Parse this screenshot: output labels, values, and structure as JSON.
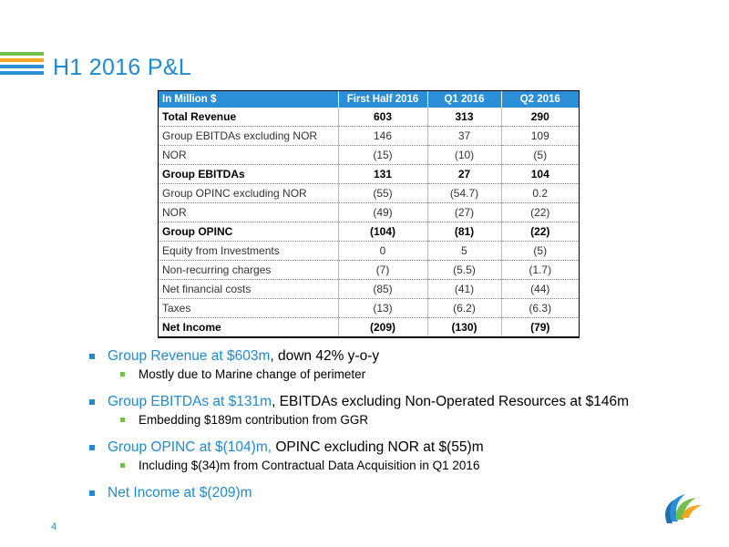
{
  "slide": {
    "title": "H1 2016 P&L",
    "page_number": "4"
  },
  "table": {
    "headers": [
      "In Million  $",
      "First Half 2016",
      "Q1 2016",
      "Q2 2016"
    ],
    "rows": [
      {
        "label": "Total Revenue",
        "h1": "603",
        "q1": "313",
        "q2": "290",
        "bold": true
      },
      {
        "label": "Group EBITDAs excluding NOR",
        "h1": "146",
        "q1": "37",
        "q2": "109",
        "bold": false
      },
      {
        "label": "NOR",
        "h1": "(15)",
        "q1": "(10)",
        "q2": "(5)",
        "bold": false
      },
      {
        "label": "Group EBITDAs",
        "h1": "131",
        "q1": "27",
        "q2": "104",
        "bold": true
      },
      {
        "label": "Group OPINC excluding NOR",
        "h1": "(55)",
        "q1": "(54.7)",
        "q2": "0.2",
        "bold": false
      },
      {
        "label": "NOR",
        "h1": "(49)",
        "q1": "(27)",
        "q2": "(22)",
        "bold": false
      },
      {
        "label": "Group OPINC",
        "h1": "(104)",
        "q1": "(81)",
        "q2": "(22)",
        "bold": true
      },
      {
        "label": "Equity from Investments",
        "h1": "0",
        "q1": "5",
        "q2": "(5)",
        "bold": false
      },
      {
        "label": "Non-recurring charges",
        "h1": "(7)",
        "q1": "(5.5)",
        "q2": "(1.7)",
        "bold": false
      },
      {
        "label": "Net financial costs",
        "h1": "(85)",
        "q1": "(41)",
        "q2": "(44)",
        "bold": false
      },
      {
        "label": "Taxes",
        "h1": "(13)",
        "q1": "(6.2)",
        "q2": "(6.3)",
        "bold": false
      },
      {
        "label": "Net Income",
        "h1": "(209)",
        "q1": "(130)",
        "q2": "(79)",
        "bold": true
      }
    ]
  },
  "bullets": [
    {
      "main_blue": "Group Revenue at $603m",
      "main_black": ", down 42% y-o-y",
      "sub": "Mostly due to Marine change of perimeter"
    },
    {
      "main_blue": "Group EBITDAs at $131m",
      "main_black": ", EBITDAs excluding Non-Operated Resources at $146m",
      "sub": "Embedding $189m contribution from GGR"
    },
    {
      "main_blue": "Group OPINC at $(104)m, ",
      "main_black": "OPINC excluding NOR at $(55)m",
      "sub": "Including $(34)m from Contractual Data Acquisition in Q1 2016"
    },
    {
      "main_blue": "Net Income at $(209)m",
      "main_black": "",
      "sub": ""
    }
  ],
  "colors": {
    "accent_blue": "#1f8ad1",
    "header_blue": "#2a8fd6",
    "green": "#6fbf4a",
    "orange": "#f5a623"
  },
  "icons": {
    "logo": "company-logo"
  }
}
